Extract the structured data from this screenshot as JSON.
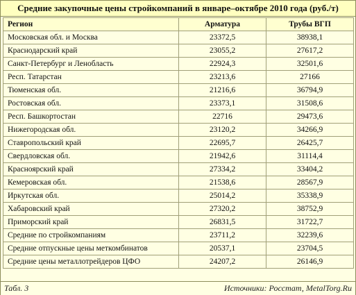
{
  "title": "Средние закупочные цены стройкомпаний в январе–октябре 2010 года (руб./т)",
  "headers": {
    "region": "Регион",
    "rebar": "Арматура",
    "pipe": "Трубы ВГП"
  },
  "rows": [
    {
      "region": "Московская обл. и Москва",
      "rebar": "23372,5",
      "pipe": "38938,1"
    },
    {
      "region": "Краснодарский край",
      "rebar": "23055,2",
      "pipe": "27617,2"
    },
    {
      "region": "Санкт-Петербург и Ленобласть",
      "rebar": "22924,3",
      "pipe": "32501,6"
    },
    {
      "region": "Респ. Татарстан",
      "rebar": "23213,6",
      "pipe": "27166"
    },
    {
      "region": "Тюменская обл.",
      "rebar": "21216,6",
      "pipe": "36794,9"
    },
    {
      "region": "Ростовская обл.",
      "rebar": "23373,1",
      "pipe": "31508,6"
    },
    {
      "region": "Респ. Башкортостан",
      "rebar": "22716",
      "pipe": "29473,6"
    },
    {
      "region": "Нижегородская обл.",
      "rebar": "23120,2",
      "pipe": "34266,9"
    },
    {
      "region": "Ставропольский край",
      "rebar": "22695,7",
      "pipe": "26425,7"
    },
    {
      "region": "Свердловская обл.",
      "rebar": "21942,6",
      "pipe": "31114,4"
    },
    {
      "region": "Красноярский край",
      "rebar": "27334,2",
      "pipe": "33404,2"
    },
    {
      "region": "Кемеровская обл.",
      "rebar": "21538,6",
      "pipe": "28567,9"
    },
    {
      "region": "Иркутская обл.",
      "rebar": "25014,2",
      "pipe": "35338,9"
    },
    {
      "region": "Хабаровский край",
      "rebar": "27320,2",
      "pipe": "38752,9"
    },
    {
      "region": "Приморский край",
      "rebar": "26831,5",
      "pipe": "31722,7"
    },
    {
      "region": "Средние по стройкомпаниям",
      "rebar": "23711,2",
      "pipe": "32239,6"
    },
    {
      "region": "Средние отпускные цены меткомбинатов",
      "rebar": "20537,1",
      "pipe": "23704,5"
    },
    {
      "region": "Средние цены металлотрейдеров ЦФО",
      "rebar": "24207,2",
      "pipe": "26146,9"
    }
  ],
  "footer": {
    "table_label": "Табл. 3",
    "sources": "Источники: Росстат, MetalTorg.Ru"
  },
  "colors": {
    "background": "#FFFFE3",
    "title_background": "#FFFFC0",
    "border": "#a09f78"
  }
}
